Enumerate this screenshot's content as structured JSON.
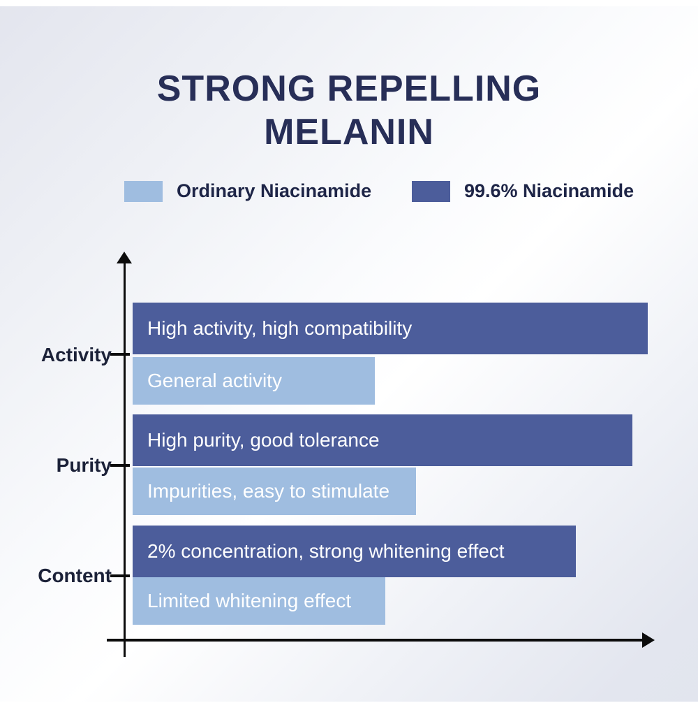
{
  "header": {
    "title_line1": "STRONG REPELLING",
    "title_line2": "MELANIN"
  },
  "colors": {
    "title_text": "#272e57",
    "axis": "#0c0c0c",
    "bar_text": "#ffffff",
    "background_edge": "#e3e5ee",
    "background_center": "#ffffff"
  },
  "chart_data": {
    "type": "bar",
    "orientation": "horizontal",
    "title": "STRONG REPELLING MELANIN",
    "categories": [
      "Activity",
      "Purity",
      "Content"
    ],
    "series": [
      {
        "name": "99.6% Niacinamide",
        "color": "#4c5d9b",
        "values_pct": [
          100,
          97,
          86
        ],
        "bar_labels": [
          "High activity, high compatibility",
          "High purity, good tolerance",
          "2% concentration, strong whitening effect"
        ]
      },
      {
        "name": "Ordinary Niacinamide",
        "color": "#9fbde0",
        "values_pct": [
          47,
          55,
          49
        ],
        "bar_labels": [
          "General activity",
          "Impurities, easy to stimulate",
          "Limited whitening effect"
        ]
      }
    ],
    "legend_position": "top",
    "grid": false,
    "x_axis": {
      "range_pct": [
        0,
        100
      ],
      "tick_labels": []
    }
  }
}
